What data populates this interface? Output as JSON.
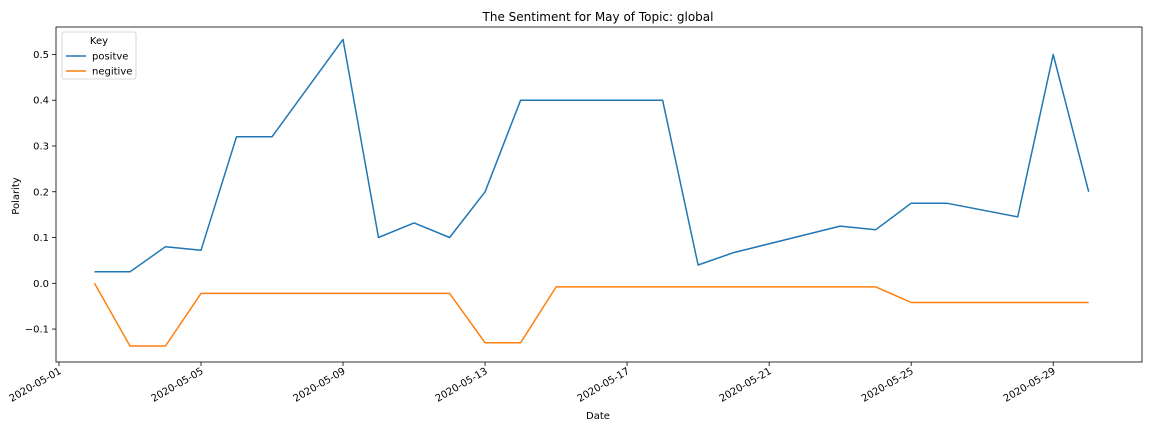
{
  "chart_data": {
    "type": "line",
    "title": "The Sentiment for May of Topic: global",
    "xlabel": "Date",
    "ylabel": "Polarity",
    "x_ticks": [
      "2020-05-01",
      "2020-05-05",
      "2020-05-09",
      "2020-05-13",
      "2020-05-17",
      "2020-05-21",
      "2020-05-25",
      "2020-05-29"
    ],
    "y_ticks": [
      "−0.1",
      "0.0",
      "0.1",
      "0.2",
      "0.3",
      "0.4",
      "0.5"
    ],
    "xlim": [
      "2020-04-30T22:00",
      "2020-05-31T12:00"
    ],
    "ylim": [
      -0.172,
      0.56
    ],
    "grid": false,
    "legend": {
      "title": "Key",
      "placement": "top-left"
    },
    "series": [
      {
        "name": "positve",
        "color": "#1f77b4",
        "x": [
          "2020-05-02",
          "2020-05-03",
          "2020-05-04",
          "2020-05-05",
          "2020-05-06",
          "2020-05-07",
          "2020-05-09",
          "2020-05-10",
          "2020-05-11",
          "2020-05-12",
          "2020-05-13",
          "2020-05-14",
          "2020-05-18",
          "2020-05-19",
          "2020-05-20",
          "2020-05-23",
          "2020-05-24",
          "2020-05-25",
          "2020-05-26",
          "2020-05-28",
          "2020-05-29",
          "2020-05-30"
        ],
        "y": [
          0.025,
          0.025,
          0.08,
          0.072,
          0.32,
          0.32,
          0.533,
          0.1,
          0.132,
          0.1,
          0.2,
          0.4,
          0.4,
          0.04,
          0.067,
          0.125,
          0.117,
          0.175,
          0.175,
          0.145,
          0.5,
          0.2
        ]
      },
      {
        "name": "negitive",
        "color": "#ff7f0e",
        "x": [
          "2020-05-02",
          "2020-05-03",
          "2020-05-04",
          "2020-05-05",
          "2020-05-12",
          "2020-05-13",
          "2020-05-14",
          "2020-05-15",
          "2020-05-24",
          "2020-05-25",
          "2020-05-30"
        ],
        "y": [
          0.0,
          -0.137,
          -0.137,
          -0.022,
          -0.022,
          -0.13,
          -0.13,
          -0.008,
          -0.008,
          -0.042,
          -0.042
        ]
      }
    ]
  }
}
